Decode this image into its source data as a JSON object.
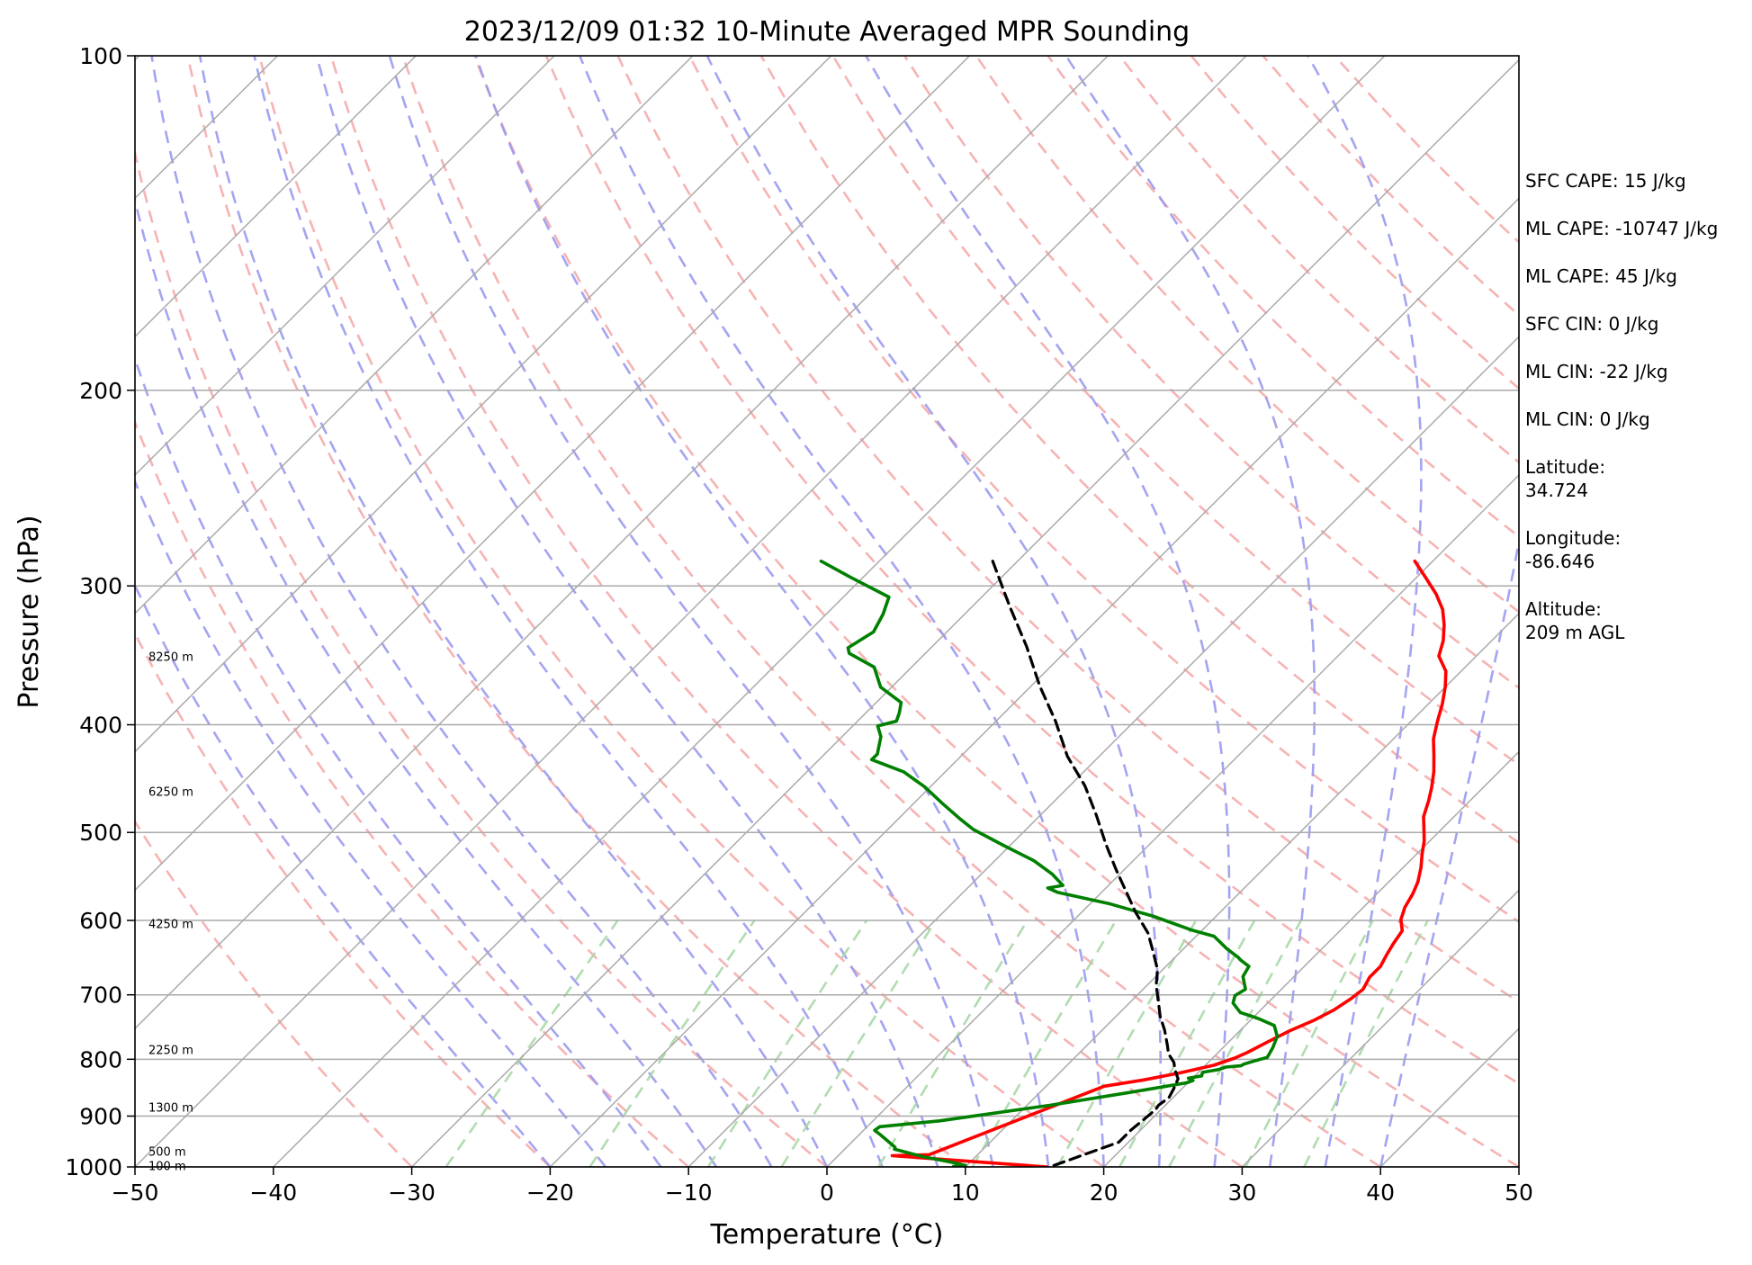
{
  "chart_data": {
    "type": "line",
    "title": "2023/12/09 01:32 10-Minute Averaged MPR Sounding",
    "xlabel": "Temperature (°C)",
    "ylabel": "Pressure (hPa)",
    "xlim": [
      -50,
      50
    ],
    "ylim": [
      1000,
      100
    ],
    "y_scale": "log",
    "x_ticks": [
      "−50",
      "−40",
      "−30",
      "−20",
      "−10",
      "0",
      "10",
      "20",
      "30",
      "40",
      "50"
    ],
    "y_ticks": [
      {
        "p": 100,
        "label": "100"
      },
      {
        "p": 200,
        "label": "200"
      },
      {
        "p": 300,
        "label": "300"
      },
      {
        "p": 400,
        "label": "400"
      },
      {
        "p": 500,
        "label": "500"
      },
      {
        "p": 600,
        "label": "600"
      },
      {
        "p": 700,
        "label": "700"
      },
      {
        "p": 800,
        "label": "800"
      },
      {
        "p": 900,
        "label": "900"
      },
      {
        "p": 1000,
        "label": "1000"
      }
    ],
    "grid": true,
    "colors": {
      "temperature": "#ff0000",
      "dewpoint": "#008000",
      "parcel": "#000000",
      "isotherm": "#aaaaaa",
      "dry_adiabat": "#f4a6a6",
      "moist_adiabat": "#9a9af0",
      "mixing_ratio": "#a8d8a8"
    },
    "series": [
      {
        "key": "temperature",
        "points": [
          [
            -1.3,
            285
          ],
          [
            0.7,
            295
          ],
          [
            2.6,
            305
          ],
          [
            4.2,
            315
          ],
          [
            5.4,
            325
          ],
          [
            6.5,
            336
          ],
          [
            7.3,
            347
          ],
          [
            8.9,
            358
          ],
          [
            10.0,
            370
          ],
          [
            11.0,
            383
          ],
          [
            11.9,
            397
          ],
          [
            12.9,
            412
          ],
          [
            14.1,
            426
          ],
          [
            15.3,
            441
          ],
          [
            16.3,
            456
          ],
          [
            17.0,
            468
          ],
          [
            17.8,
            484
          ],
          [
            18.9,
            499
          ],
          [
            19.6,
            509
          ],
          [
            20.4,
            523
          ],
          [
            21.3,
            538
          ],
          [
            22.1,
            554
          ],
          [
            22.6,
            568
          ],
          [
            23.0,
            584
          ],
          [
            23.6,
            599
          ],
          [
            24.5,
            613
          ],
          [
            24.8,
            630
          ],
          [
            25.1,
            644
          ],
          [
            25.5,
            660
          ],
          [
            25.5,
            675
          ],
          [
            25.9,
            692
          ],
          [
            25.7,
            706
          ],
          [
            25.3,
            722
          ],
          [
            24.6,
            738
          ],
          [
            23.6,
            754
          ],
          [
            22.8,
            772
          ],
          [
            22.1,
            789
          ],
          [
            21.6,
            798
          ],
          [
            20.6,
            810
          ],
          [
            18.7,
            823
          ],
          [
            16.6,
            835
          ],
          [
            14.2,
            846
          ],
          [
            6.5,
            975
          ],
          [
            3.9,
            977
          ],
          [
            15.9,
            1000
          ]
        ]
      },
      {
        "key": "dewpoint",
        "points": [
          [
            -44.2,
            285
          ],
          [
            -40.8,
            295
          ],
          [
            -36.7,
            307
          ],
          [
            -35.9,
            318
          ],
          [
            -35.3,
            330
          ],
          [
            -36.0,
            341
          ],
          [
            -35.5,
            345
          ],
          [
            -32.7,
            355
          ],
          [
            -30.8,
            370
          ],
          [
            -28.2,
            382
          ],
          [
            -27.6,
            390
          ],
          [
            -27.2,
            397
          ],
          [
            -28.2,
            401
          ],
          [
            -27.2,
            410
          ],
          [
            -26.2,
            425
          ],
          [
            -26.2,
            430
          ],
          [
            -23.0,
            441
          ],
          [
            -20.4,
            455
          ],
          [
            -17.9,
            471
          ],
          [
            -15.4,
            487
          ],
          [
            -13.8,
            497
          ],
          [
            -10.6,
            513
          ],
          [
            -7.2,
            530
          ],
          [
            -4.9,
            545
          ],
          [
            -3.3,
            558
          ],
          [
            -4.2,
            561
          ],
          [
            -3.2,
            566
          ],
          [
            1.5,
            580
          ],
          [
            5.5,
            595
          ],
          [
            9.2,
            612
          ],
          [
            11.3,
            620
          ],
          [
            13.1,
            636
          ],
          [
            14.6,
            648
          ],
          [
            14.9,
            651
          ],
          [
            16.0,
            660
          ],
          [
            16.3,
            674
          ],
          [
            17.4,
            692
          ],
          [
            17.1,
            701
          ],
          [
            17.5,
            712
          ],
          [
            18.7,
            726
          ],
          [
            20.4,
            735
          ],
          [
            22.1,
            746
          ],
          [
            23.1,
            763
          ],
          [
            23.6,
            781
          ],
          [
            23.9,
            797
          ],
          [
            23.3,
            802
          ],
          [
            22.7,
            808
          ],
          [
            22.6,
            811
          ],
          [
            21.6,
            813
          ],
          [
            21.3,
            817
          ],
          [
            20.3,
            822
          ],
          [
            20.5,
            828
          ],
          [
            19.7,
            832
          ],
          [
            20.2,
            836
          ],
          [
            19.9,
            840
          ],
          [
            16.5,
            857
          ],
          [
            11.7,
            880
          ],
          [
            4.8,
            909
          ],
          [
            0.9,
            920
          ],
          [
            0.8,
            927
          ],
          [
            1.5,
            935
          ],
          [
            3.5,
            960
          ],
          [
            3.6,
            964
          ],
          [
            6.2,
            979
          ],
          [
            8.6,
            990
          ],
          [
            9.9,
            997
          ],
          [
            9.1,
            999
          ]
        ]
      },
      {
        "key": "parcel",
        "points": [
          [
            -31.8,
            285
          ],
          [
            -27.3,
            313
          ],
          [
            -23.2,
            340
          ],
          [
            -19.4,
            369
          ],
          [
            -15.7,
            397
          ],
          [
            -12.3,
            427
          ],
          [
            -8.9,
            454
          ],
          [
            -5.9,
            483
          ],
          [
            -3.2,
            512
          ],
          [
            -0.6,
            540
          ],
          [
            1.7,
            565
          ],
          [
            3.9,
            590
          ],
          [
            6.3,
            616
          ],
          [
            8.0,
            640
          ],
          [
            9.6,
            664
          ],
          [
            10.7,
            687
          ],
          [
            12.0,
            710
          ],
          [
            13.2,
            732
          ],
          [
            14.5,
            753
          ],
          [
            15.8,
            777
          ],
          [
            16.5,
            791
          ],
          [
            17.5,
            805
          ],
          [
            18.2,
            819
          ],
          [
            19.0,
            833
          ],
          [
            19.4,
            850
          ],
          [
            19.7,
            866
          ],
          [
            19.5,
            880
          ],
          [
            19.6,
            888
          ],
          [
            19.5,
            902
          ],
          [
            19.3,
            926
          ],
          [
            19.3,
            950
          ],
          [
            16.1,
            1000
          ]
        ]
      }
    ],
    "height_labels": [
      {
        "label": "8250 m",
        "p": 347
      },
      {
        "label": "6250 m",
        "p": 459
      },
      {
        "label": "4250 m",
        "p": 604
      },
      {
        "label": "2250 m",
        "p": 784
      },
      {
        "label": "1300 m",
        "p": 883
      },
      {
        "label": "500 m",
        "p": 968
      },
      {
        "label": "100 m",
        "p": 997
      }
    ],
    "info": {
      "sfc_cape": "SFC CAPE: 15 J/kg",
      "ml_cape_1": "ML CAPE: -10747 J/kg",
      "ml_cape_2": "ML CAPE: 45 J/kg",
      "sfc_cin": "SFC CIN: 0 J/kg",
      "ml_cin_1": "ML CIN: -22 J/kg",
      "ml_cin_2": "ML CIN: 0 J/kg",
      "latitude_label": "Latitude:",
      "latitude_value": "34.724",
      "longitude_label": "Longitude:",
      "longitude_value": "-86.646",
      "altitude_label": "Altitude:",
      "altitude_value": "209 m AGL"
    }
  }
}
